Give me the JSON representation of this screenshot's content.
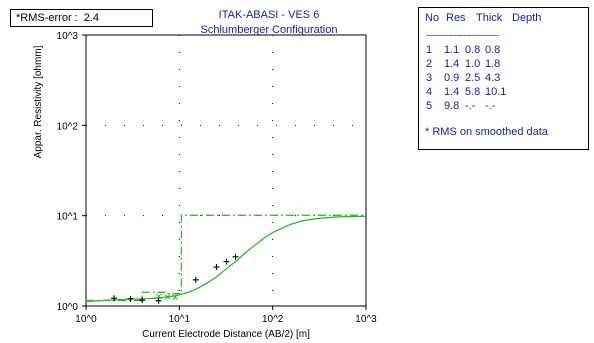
{
  "rms_box": {
    "label": "*RMS-error :",
    "value": "2.4"
  },
  "chart_data": {
    "type": "line",
    "title": "ITAK-ABASI - VES 6",
    "subtitle": "Schlumberger Configuration",
    "xlabel": "Current Electrode Distance (AB/2) [m]",
    "ylabel": "Appar. Resistivity [ohmm]",
    "x_scale": "log",
    "y_scale": "log",
    "xlim": [
      1,
      1000
    ],
    "ylim": [
      1,
      1000
    ],
    "x_ticks": [
      1,
      10,
      100,
      1000
    ],
    "x_tick_labels": [
      "10^0",
      "10^1",
      "10^2",
      "10^3"
    ],
    "y_ticks": [
      1,
      10,
      100,
      1000
    ],
    "y_tick_labels": [
      "10^0",
      "10^1",
      "10^2",
      "10^3"
    ],
    "grid": "dotted",
    "colors": {
      "model": "#21b721",
      "observed": "#000000",
      "smoothed": "#21b721",
      "text": "#1a1aa6"
    },
    "model_curve": {
      "x": [
        1,
        1.3,
        1.7,
        2,
        2.5,
        3,
        4,
        5,
        6,
        8,
        10,
        12,
        15,
        20,
        25,
        30,
        40,
        50,
        60,
        80,
        100,
        150,
        200,
        300,
        500,
        1000
      ],
      "y": [
        1.12,
        1.14,
        1.16,
        1.17,
        1.18,
        1.19,
        1.2,
        1.21,
        1.23,
        1.27,
        1.33,
        1.4,
        1.53,
        1.8,
        2.1,
        2.45,
        3.1,
        3.8,
        4.45,
        5.6,
        6.5,
        7.9,
        8.7,
        9.3,
        9.7,
        9.85
      ]
    },
    "layer_model_steps": {
      "x": [
        1,
        4,
        4,
        7,
        7,
        10.5,
        10.5,
        1000
      ],
      "y": [
        1.15,
        1.15,
        1.42,
        1.42,
        1.37,
        1.37,
        10.1,
        10.1
      ]
    },
    "observed_points": {
      "x": [
        2,
        3,
        4,
        6,
        15,
        25,
        32,
        40
      ],
      "y": [
        1.22,
        1.2,
        1.16,
        1.14,
        1.95,
        2.7,
        3.1,
        3.5
      ]
    },
    "smoothed_points": {
      "x": [
        6,
        7.5,
        9
      ],
      "y": [
        1.28,
        1.26,
        1.25
      ]
    }
  },
  "layers": {
    "headers": [
      "No",
      "Res",
      "Thick",
      "Depth"
    ],
    "separator": "-----------------------------",
    "rows": [
      [
        "1",
        "1.1",
        "0.8",
        "0.8"
      ],
      [
        "2",
        "1.4",
        "1.0",
        "1.8"
      ],
      [
        "3",
        "0.9",
        "2.5",
        "4.3"
      ],
      [
        "4",
        "1.4",
        "5.8",
        "10.1"
      ],
      [
        "5",
        "9.8",
        "-.-",
        "-.-"
      ]
    ],
    "note": "* RMS on smoothed data"
  }
}
